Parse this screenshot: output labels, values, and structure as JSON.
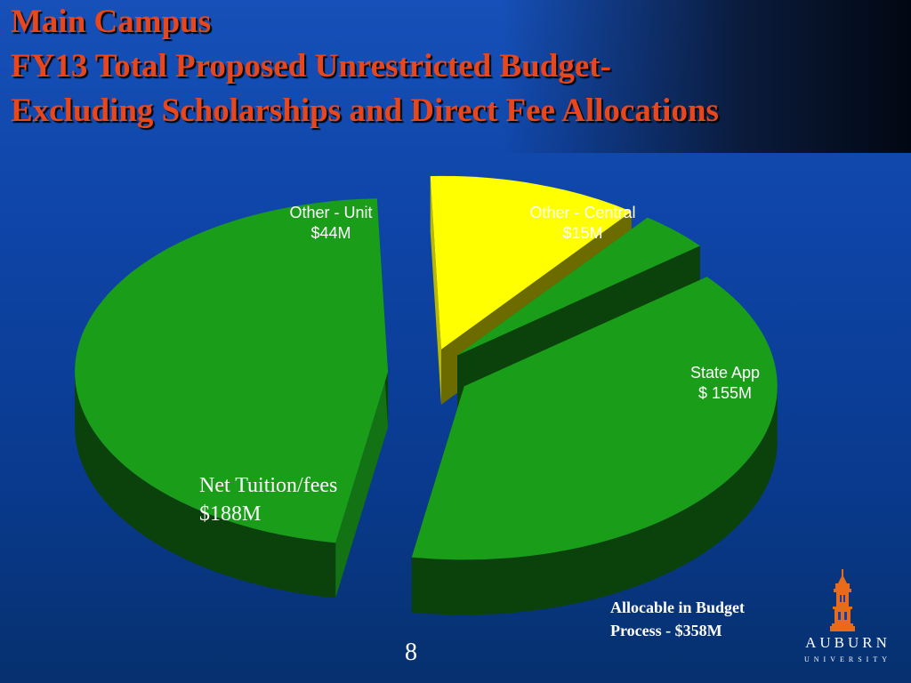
{
  "title": {
    "line1": "Main Campus",
    "line2": "FY13 Total Proposed Unrestricted Budget-",
    "line3": "Excluding Scholarships and Direct Fee Allocations"
  },
  "chart_data": {
    "type": "pie",
    "title": "Main Campus FY13 Total Proposed Unrestricted Budget- Excluding Scholarships and Direct Fee Allocations",
    "units": "$M",
    "slices": [
      {
        "label": "Other - Unit",
        "value": 44,
        "value_label": "$44M",
        "color": "#ffff00",
        "exploded": true
      },
      {
        "label": "Other - Central",
        "value": 15,
        "value_label": "$15M",
        "color": "#1a9e1a",
        "exploded": true
      },
      {
        "label": "State App",
        "value": 155,
        "value_label": "$ 155M",
        "color": "#1a9e1a",
        "exploded": true
      },
      {
        "label": "Net Tuition/fees",
        "value": 188,
        "value_label": "$188M",
        "color": "#1a9e1a",
        "exploded": true
      }
    ],
    "style": "3d-exploded"
  },
  "note": {
    "line1": "Allocable in Budget",
    "line2": "Process - $358M"
  },
  "page_number": "8",
  "logo": {
    "icon": "auburn-tower-icon",
    "name": "AUBURN",
    "subtitle": "UNIVERSITY"
  }
}
